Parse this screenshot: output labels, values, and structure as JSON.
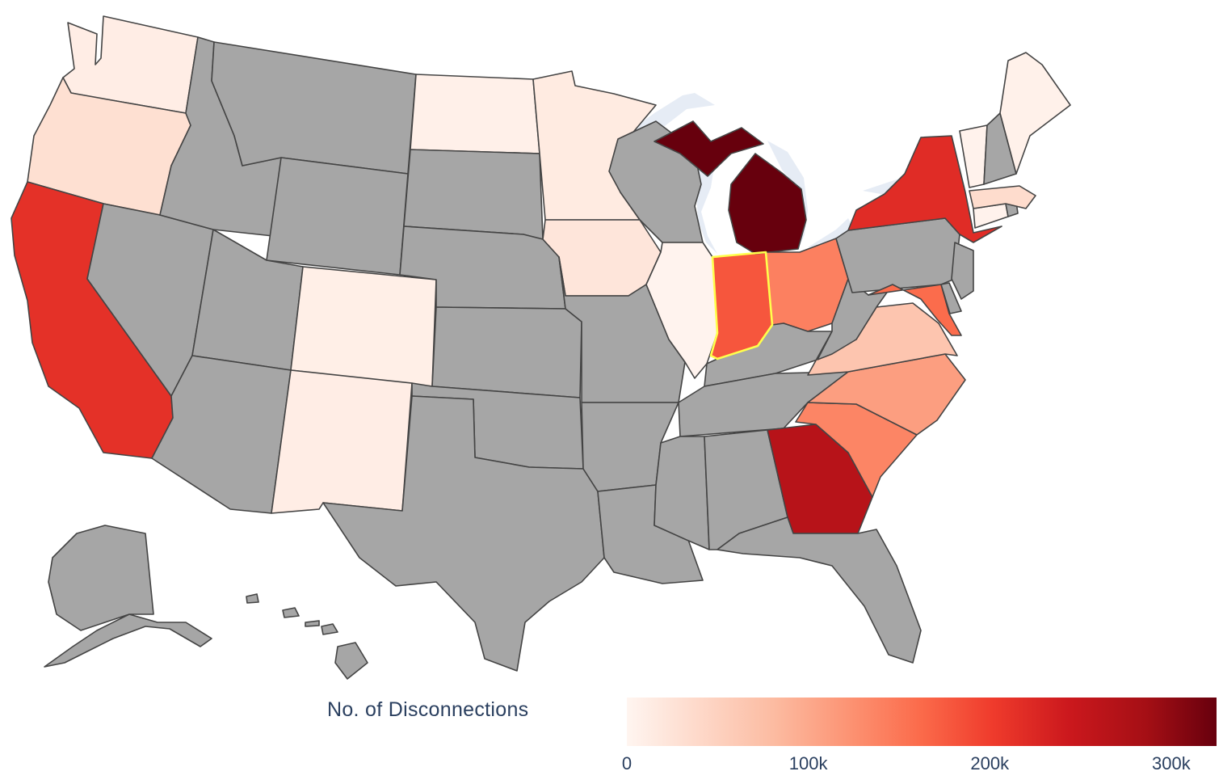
{
  "legend": {
    "title": "No. of Disconnections",
    "min": 0,
    "max": 325000,
    "ticks": [
      {
        "label": "0",
        "value": 0
      },
      {
        "label": "100k",
        "value": 100000
      },
      {
        "label": "200k",
        "value": 200000
      },
      {
        "label": "300k",
        "value": 300000
      }
    ]
  },
  "colors": {
    "no_data": "#a6a6a6",
    "lake": "#e6ecf5",
    "border": "#444444",
    "hover_outline": "#ffff4d",
    "scale_low": "#fff5f0",
    "scale_high": "#67000d"
  },
  "highlighted_state": "IN",
  "map_data": {
    "type": "choropleth",
    "scope": "usa",
    "colorscale": "Reds",
    "values": {
      "WA": 15000,
      "OR": 40000,
      "CA": 215000,
      "ND": 10000,
      "MN": 20000,
      "IA": 30000,
      "IL": 3000,
      "IN": 180000,
      "MI": 325000,
      "OH": 140000,
      "NY": 220000,
      "CO": 12000,
      "NM": 15000,
      "ME": 8000,
      "VT": 6000,
      "MA": 45000,
      "CT": 5000,
      "MD": 160000,
      "VA": 70000,
      "NC": 110000,
      "SC": 135000,
      "GA": 265000
    },
    "no_data_states": [
      "ID",
      "MT",
      "WY",
      "NV",
      "UT",
      "AZ",
      "TX",
      "OK",
      "KS",
      "NE",
      "SD",
      "WI",
      "MO",
      "AR",
      "LA",
      "MS",
      "AL",
      "TN",
      "KY",
      "WV",
      "PA",
      "NJ",
      "DE",
      "NH",
      "RI",
      "FL",
      "AK",
      "HI"
    ]
  }
}
